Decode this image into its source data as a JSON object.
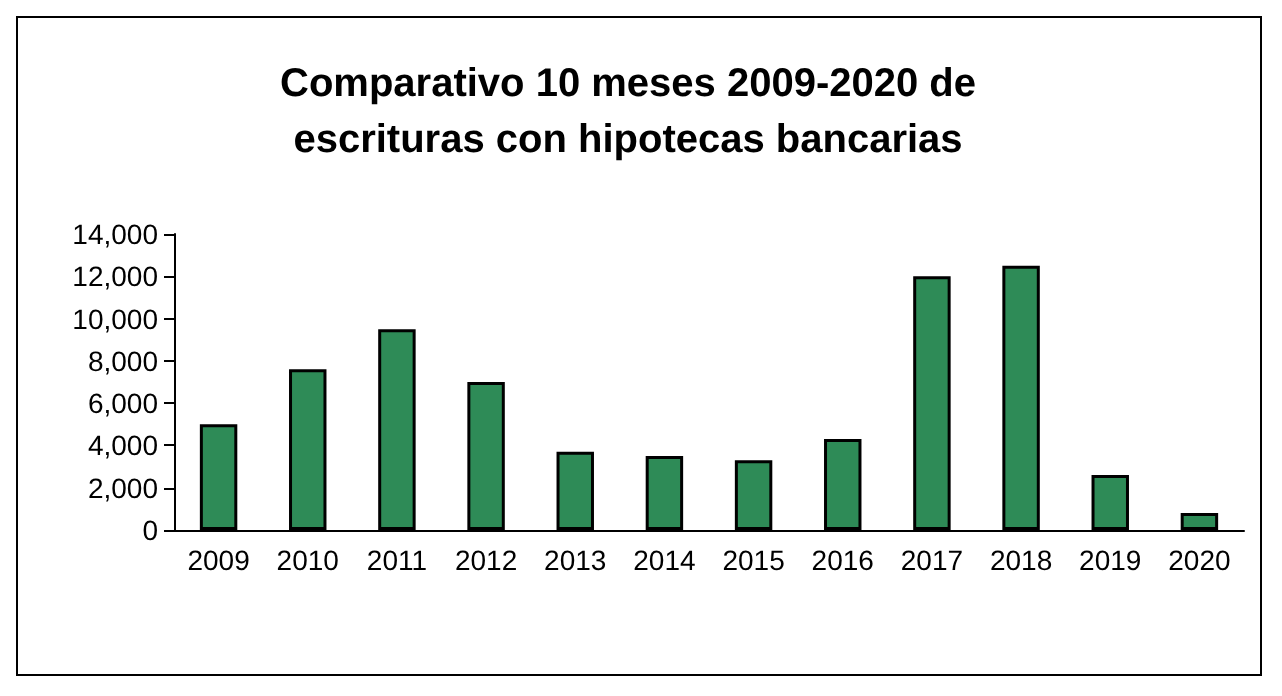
{
  "chart_data": {
    "type": "bar",
    "title": "Comparativo 10 meses 2009-2020 de\nescrituras con hipotecas bancarias",
    "categories": [
      "2009",
      "2010",
      "2011",
      "2012",
      "2013",
      "2014",
      "2015",
      "2016",
      "2017",
      "2018",
      "2019",
      "2020"
    ],
    "values": [
      5000,
      7600,
      9500,
      7000,
      3700,
      3500,
      3300,
      4300,
      12000,
      12500,
      2600,
      800
    ],
    "color": "#2e8b57",
    "ylim": [
      0,
      14000
    ],
    "yticks": [
      0,
      {
        "value": 2000,
        "label": "2,000"
      },
      {
        "value": 4000,
        "label": "4,000"
      },
      {
        "value": 6000,
        "label": "6,000"
      },
      {
        "value": 8000,
        "label": "8,000"
      },
      {
        "value": 10000,
        "label": "10,000"
      },
      {
        "value": 12000,
        "label": "12,000"
      },
      {
        "value": 14000,
        "label": "14,000"
      }
    ],
    "grid": false
  }
}
